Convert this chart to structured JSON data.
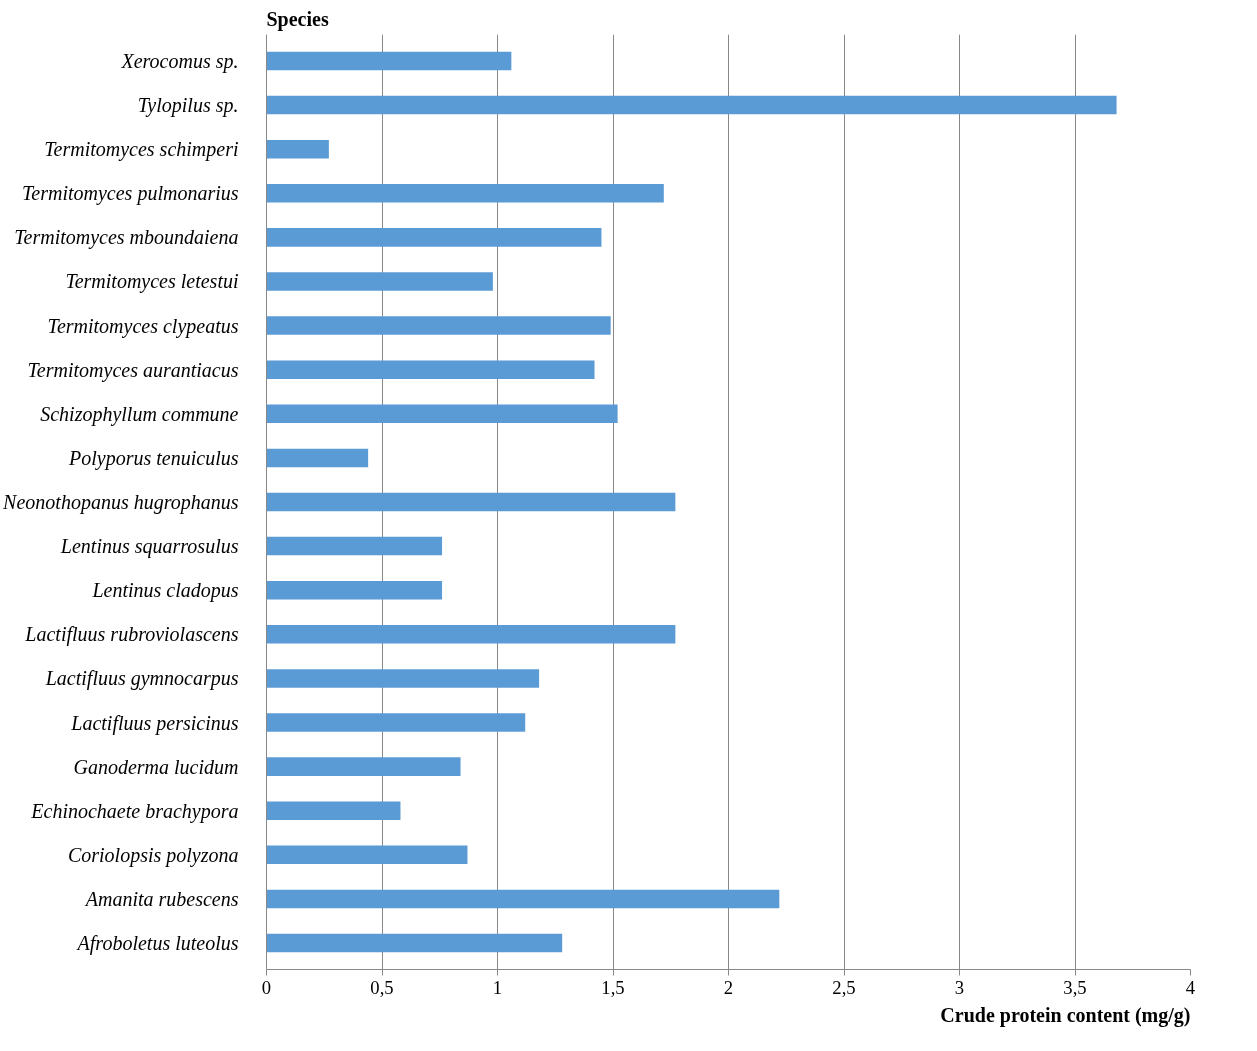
{
  "chart_data": {
    "type": "bar",
    "orientation": "horizontal",
    "ylabel": "Species",
    "xlabel": "Crude protein content (mg/g)",
    "categories": [
      "Xerocomus sp.",
      "Tylopilus sp.",
      "Termitomyces schimperi",
      "Termitomyces pulmonarius",
      "Termitomyces mboundaiena",
      "Termitomyces letestui",
      "Termitomyces clypeatus",
      "Termitomyces aurantiacus",
      "Schizophyllum commune",
      "Polyporus tenuiculus",
      "Neonothopanus hugrophanus",
      "Lentinus squarrosulus",
      "Lentinus cladopus",
      "Lactifluus rubroviolascens",
      "Lactifluus gymnocarpus",
      "Lactifluus persicinus",
      "Ganoderma lucidum",
      "Echinochaete brachypora",
      "Coriolopsis polyzona",
      "Amanita rubescens",
      "Afroboletus luteolus"
    ],
    "values": [
      1.06,
      3.68,
      0.27,
      1.72,
      1.45,
      0.98,
      1.49,
      1.42,
      1.52,
      0.44,
      1.77,
      0.76,
      0.76,
      1.77,
      1.18,
      1.12,
      0.84,
      0.58,
      0.87,
      2.22,
      1.28
    ],
    "color": "#5b9bd5",
    "xlim": [
      0,
      4
    ],
    "xticks": [
      0,
      {
        "value": 0.5,
        "label": "0,5"
      },
      1,
      {
        "value": 1.5,
        "label": "1,5"
      },
      2,
      {
        "value": 2.5,
        "label": "2,5"
      },
      3,
      {
        "value": 3.5,
        "label": "3,5"
      },
      4
    ],
    "grid": "x"
  }
}
